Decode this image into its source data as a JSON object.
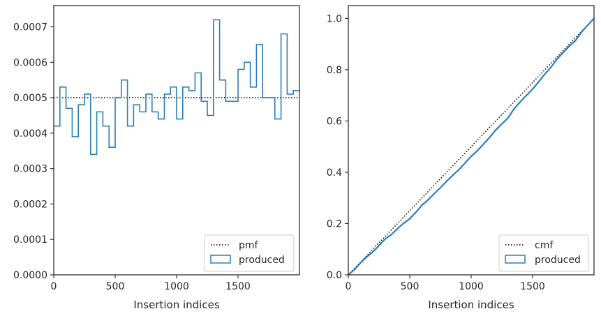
{
  "chart_data": [
    {
      "type": "line",
      "subtype": "step-histogram",
      "xlabel": "Insertion indices",
      "ylabel": "",
      "xlim": [
        0,
        2000
      ],
      "ylim": [
        0,
        0.00076
      ],
      "xticks": [
        0,
        500,
        1000,
        1500
      ],
      "xtick_labels": [
        "0",
        "500",
        "1000",
        "1500"
      ],
      "yticks": [
        0,
        0.0001,
        0.0002,
        0.0003,
        0.0004,
        0.0005,
        0.0006,
        0.0007
      ],
      "ytick_labels": [
        "0.0000",
        "0.0001",
        "0.0002",
        "0.0003",
        "0.0004",
        "0.0005",
        "0.0006",
        "0.0007"
      ],
      "grid": false,
      "legend_position": "bottom-right",
      "series": [
        {
          "name": "pmf",
          "style": "dotted",
          "color": "#000000",
          "x": [
            0,
            2000
          ],
          "y": [
            0.0005,
            0.0005
          ]
        },
        {
          "name": "produced",
          "style": "step",
          "color": "#2a7fb8",
          "bin_edges": [
            0,
            50,
            100,
            150,
            200,
            250,
            300,
            350,
            400,
            450,
            500,
            550,
            600,
            650,
            700,
            750,
            800,
            850,
            900,
            950,
            1000,
            1050,
            1100,
            1150,
            1200,
            1250,
            1300,
            1350,
            1400,
            1450,
            1500,
            1550,
            1600,
            1650,
            1700,
            1750,
            1800,
            1850,
            1900,
            1950,
            2000
          ],
          "values": [
            0.00042,
            0.00053,
            0.00047,
            0.00039,
            0.00048,
            0.00051,
            0.00034,
            0.00046,
            0.00042,
            0.00036,
            0.0005,
            0.00055,
            0.00042,
            0.00048,
            0.00046,
            0.00051,
            0.00046,
            0.00044,
            0.00051,
            0.00053,
            0.00044,
            0.00053,
            0.00052,
            0.00057,
            0.00049,
            0.00045,
            0.00072,
            0.00055,
            0.00049,
            0.00049,
            0.00058,
            0.0006,
            0.00053,
            0.00065,
            0.0005,
            0.0005,
            0.00044,
            0.00068,
            0.00051,
            0.00052
          ]
        }
      ]
    },
    {
      "type": "line",
      "subtype": "cumulative-step",
      "xlabel": "Insertion indices",
      "ylabel": "",
      "xlim": [
        0,
        2000
      ],
      "ylim": [
        0,
        1.05
      ],
      "xticks": [
        0,
        500,
        1000,
        1500
      ],
      "xtick_labels": [
        "0",
        "500",
        "1000",
        "1500"
      ],
      "yticks": [
        0,
        0.2,
        0.4,
        0.6,
        0.8,
        1.0
      ],
      "ytick_labels": [
        "0.0",
        "0.2",
        "0.4",
        "0.6",
        "0.8",
        "1.0"
      ],
      "grid": false,
      "legend_position": "bottom-right",
      "series": [
        {
          "name": "cmf",
          "style": "dotted",
          "color": "#000000",
          "x": [
            0,
            2000
          ],
          "y": [
            0,
            1.0
          ]
        },
        {
          "name": "produced",
          "style": "step",
          "color": "#2a7fb8",
          "x": [
            0,
            50,
            100,
            150,
            200,
            250,
            300,
            350,
            400,
            450,
            500,
            550,
            600,
            650,
            700,
            750,
            800,
            850,
            900,
            950,
            1000,
            1050,
            1100,
            1150,
            1200,
            1250,
            1300,
            1350,
            1400,
            1450,
            1500,
            1550,
            1600,
            1650,
            1700,
            1750,
            1800,
            1850,
            1900,
            1950,
            2000
          ],
          "y": [
            0,
            0.021,
            0.047,
            0.07,
            0.09,
            0.114,
            0.14,
            0.157,
            0.18,
            0.201,
            0.219,
            0.244,
            0.272,
            0.293,
            0.317,
            0.34,
            0.365,
            0.388,
            0.41,
            0.436,
            0.462,
            0.484,
            0.51,
            0.536,
            0.565,
            0.589,
            0.612,
            0.648,
            0.675,
            0.7,
            0.724,
            0.753,
            0.783,
            0.81,
            0.842,
            0.867,
            0.892,
            0.914,
            0.948,
            0.974,
            1.0
          ]
        }
      ]
    }
  ]
}
